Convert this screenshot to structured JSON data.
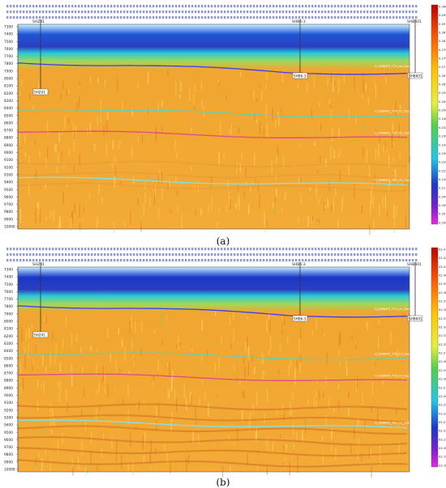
{
  "panels": [
    {
      "id": "a",
      "caption": "(a)",
      "well_labels": [
        "SHZ41",
        "SHB6-3",
        "SHB601"
      ],
      "horizon_labels": [
        "H_SHBNFZ_T74_int_Depth>904",
        "H_SHBNFZ_T76_int_Depth>904",
        "H_SHBNFZ_T78_int_Depth>904",
        "H_SHBNFZ_T80_int_Depth>904"
      ],
      "depth_ticks": [
        "7300",
        "7400",
        "7500",
        "7600",
        "7700",
        "7800",
        "7900",
        "8000",
        "8100",
        "8200",
        "8300",
        "8400",
        "8500",
        "8600",
        "8700",
        "8800",
        "8900",
        "9000",
        "9100",
        "9200",
        "9300",
        "9400",
        "9500",
        "9600",
        "9700",
        "9800",
        "9900",
        "10000"
      ],
      "colorbar_ticks": [
        "0.3000",
        "0.2959",
        "0.2918",
        "0.2877",
        "0.2836",
        "0.2795",
        "0.2754",
        "0.2713",
        "0.2672",
        "0.2631",
        "0.2590",
        "0.2549",
        "0.2508",
        "0.2467",
        "0.2426",
        "0.2385",
        "0.2344",
        "0.2303",
        "0.2262",
        "0.2221",
        "0.2180",
        "0.2139",
        "0.2098",
        "0.2057",
        "0.2016",
        "0.2000"
      ],
      "colors": {
        "upper": "#1e56d6",
        "band": "#27c8d8",
        "green": "#3fc44a",
        "body": "#f0a630",
        "magenta": "#e52adf"
      }
    },
    {
      "id": "b",
      "caption": "(b)",
      "well_labels": [
        "SHZ41",
        "SHB6-3",
        "SHB601"
      ],
      "horizon_labels": [
        "H_SHBNFZ_T74_int_Depth>904",
        "H_SHBNFZ_T76_int_Depth>904",
        "H_SHBNFZ_T78_int_Depth>904",
        "H_SHBNFZ_T80_int_Depth>904"
      ],
      "depth_ticks": [
        "7300",
        "7400",
        "7500",
        "7600",
        "7700",
        "7800",
        "7900",
        "8000",
        "8100",
        "8200",
        "8300",
        "8400",
        "8500",
        "8600",
        "8700",
        "8800",
        "8900",
        "9000",
        "9100",
        "9200",
        "9300",
        "9400",
        "9500",
        "9600",
        "9700",
        "9800",
        "9900",
        "10000"
      ],
      "colorbar_ticks": [
        "02.43",
        "02.42",
        "02.41",
        "02.40",
        "02.39",
        "02.38",
        "02.37",
        "02.36",
        "02.35",
        "02.34",
        "02.33",
        "02.32",
        "02.31",
        "02.30",
        "02.29",
        "02.28",
        "02.27",
        "02.26",
        "02.25",
        "02.24",
        "02.23",
        "02.22",
        "02.21",
        "02.20",
        "02.19",
        "02.18"
      ],
      "colors": {
        "upper": "#1838c8",
        "band": "#27c8d8",
        "green": "#3fc44a",
        "body": "#f0a630",
        "magenta": "#c625d6"
      }
    }
  ]
}
